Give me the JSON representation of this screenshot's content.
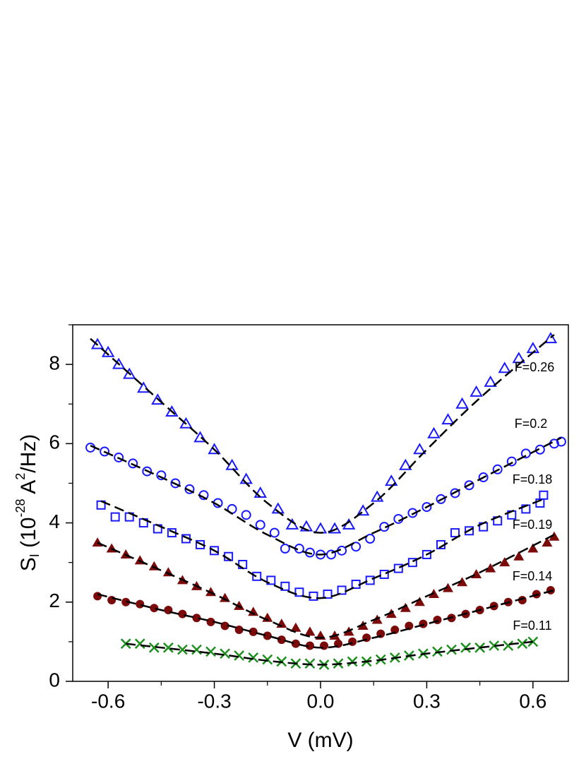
{
  "chart_data": {
    "type": "scatter",
    "xlabel": "V (mV)",
    "ylabel": [
      "S",
      "I",
      " (10",
      "-28",
      " A",
      "2",
      "/Hz)"
    ],
    "xlim": [
      -0.7,
      0.7
    ],
    "ylim": [
      0,
      9
    ],
    "xticks": [
      -0.6,
      -0.3,
      {
        "value": 0,
        "label": "0.0"
      },
      0.3,
      0.6
    ],
    "yticks": [
      0,
      2,
      4,
      6,
      8
    ],
    "fit_color": "#000000",
    "series": [
      {
        "name": "F=0.26",
        "color": "#1a1aff",
        "marker": "triangle-open",
        "x": [
          -0.63,
          -0.6,
          -0.57,
          -0.54,
          -0.5,
          -0.46,
          -0.42,
          -0.38,
          -0.34,
          -0.3,
          -0.25,
          -0.21,
          -0.17,
          -0.12,
          -0.08,
          -0.04,
          0.0,
          0.04,
          0.08,
          0.12,
          0.16,
          0.2,
          0.24,
          0.28,
          0.32,
          0.36,
          0.4,
          0.44,
          0.48,
          0.52,
          0.56,
          0.6,
          0.65
        ],
        "values": [
          8.5,
          8.3,
          8.0,
          7.75,
          7.4,
          7.1,
          6.8,
          6.5,
          6.15,
          5.85,
          5.45,
          5.1,
          4.75,
          4.35,
          3.95,
          3.9,
          3.85,
          3.85,
          3.95,
          4.3,
          4.65,
          5.05,
          5.45,
          5.85,
          6.25,
          6.6,
          7.0,
          7.3,
          7.55,
          7.9,
          8.15,
          8.4,
          8.65
        ],
        "fit": {
          "x": [
            -0.65,
            -0.45,
            -0.3,
            -0.15,
            0,
            0.15,
            0.3,
            0.45,
            0.66
          ],
          "values": [
            8.65,
            7.05,
            5.85,
            4.5,
            3.75,
            4.5,
            5.85,
            7.15,
            8.75
          ]
        }
      },
      {
        "name": "F=0.2",
        "color": "#1a1aff",
        "marker": "circle-open",
        "x": [
          -0.65,
          -0.61,
          -0.57,
          -0.53,
          -0.49,
          -0.45,
          -0.41,
          -0.37,
          -0.33,
          -0.29,
          -0.25,
          -0.21,
          -0.17,
          -0.13,
          -0.1,
          -0.06,
          -0.03,
          0.0,
          0.03,
          0.06,
          0.1,
          0.14,
          0.18,
          0.22,
          0.26,
          0.3,
          0.34,
          0.38,
          0.42,
          0.46,
          0.5,
          0.54,
          0.58,
          0.62,
          0.66,
          0.68
        ],
        "values": [
          5.9,
          5.8,
          5.65,
          5.5,
          5.3,
          5.2,
          5.0,
          4.85,
          4.7,
          4.5,
          4.35,
          4.2,
          3.95,
          3.75,
          3.35,
          3.35,
          3.25,
          3.2,
          3.2,
          3.3,
          3.4,
          3.6,
          3.9,
          4.1,
          4.25,
          4.4,
          4.6,
          4.75,
          4.95,
          5.15,
          5.35,
          5.55,
          5.75,
          5.85,
          6.0,
          6.05
        ],
        "fit": {
          "x": [
            -0.65,
            -0.45,
            -0.3,
            -0.15,
            0,
            0.15,
            0.3,
            0.45,
            0.68
          ],
          "values": [
            5.95,
            5.15,
            4.5,
            3.7,
            3.2,
            3.75,
            4.4,
            5.1,
            6.15
          ]
        }
      },
      {
        "name": "F=0.18",
        "color": "#1a1aff",
        "marker": "square-open",
        "x": [
          -0.62,
          -0.58,
          -0.54,
          -0.5,
          -0.46,
          -0.42,
          -0.38,
          -0.34,
          -0.3,
          -0.26,
          -0.22,
          -0.18,
          -0.14,
          -0.1,
          -0.06,
          -0.02,
          0.02,
          0.06,
          0.1,
          0.14,
          0.18,
          0.22,
          0.26,
          0.3,
          0.34,
          0.38,
          0.42,
          0.46,
          0.5,
          0.54,
          0.58,
          0.62,
          0.63
        ],
        "values": [
          4.45,
          4.15,
          4.15,
          4.0,
          3.85,
          3.75,
          3.6,
          3.45,
          3.3,
          3.15,
          2.95,
          2.65,
          2.55,
          2.4,
          2.25,
          2.15,
          2.2,
          2.3,
          2.45,
          2.55,
          2.7,
          2.85,
          3.0,
          3.2,
          3.45,
          3.75,
          3.8,
          3.9,
          4.05,
          4.2,
          4.35,
          4.5,
          4.7
        ],
        "fit": {
          "x": [
            -0.62,
            -0.45,
            -0.3,
            -0.15,
            0,
            0.15,
            0.3,
            0.45,
            0.63
          ],
          "values": [
            4.55,
            3.9,
            3.3,
            2.5,
            2.1,
            2.6,
            3.2,
            3.95,
            4.6
          ]
        }
      },
      {
        "name": "F=0.19",
        "color": "#7b0a0a",
        "marker": "triangle",
        "x": [
          -0.63,
          -0.59,
          -0.55,
          -0.51,
          -0.47,
          -0.43,
          -0.39,
          -0.35,
          -0.31,
          -0.27,
          -0.23,
          -0.19,
          -0.15,
          -0.11,
          -0.07,
          -0.03,
          0.0,
          0.04,
          0.08,
          0.12,
          0.16,
          0.2,
          0.24,
          0.28,
          0.32,
          0.36,
          0.4,
          0.44,
          0.48,
          0.52,
          0.56,
          0.6,
          0.64,
          0.66
        ],
        "values": [
          3.5,
          3.35,
          3.2,
          3.05,
          2.9,
          2.75,
          2.55,
          2.4,
          2.25,
          2.1,
          1.9,
          1.75,
          1.6,
          1.45,
          1.35,
          1.25,
          1.15,
          1.15,
          1.25,
          1.4,
          1.55,
          1.7,
          1.85,
          2.0,
          2.2,
          2.35,
          2.5,
          2.7,
          2.85,
          3.0,
          3.15,
          3.35,
          3.5,
          3.65
        ],
        "fit": {
          "x": [
            -0.63,
            -0.45,
            -0.3,
            -0.15,
            0,
            0.15,
            0.3,
            0.45,
            0.66
          ],
          "values": [
            3.5,
            2.8,
            2.2,
            1.55,
            1.1,
            1.55,
            2.15,
            2.75,
            3.7
          ]
        }
      },
      {
        "name": "F=0.14",
        "color": "#7b0a0a",
        "marker": "circle",
        "x": [
          -0.63,
          -0.59,
          -0.55,
          -0.51,
          -0.47,
          -0.43,
          -0.39,
          -0.35,
          -0.31,
          -0.27,
          -0.23,
          -0.19,
          -0.15,
          -0.11,
          -0.07,
          -0.03,
          0.01,
          0.05,
          0.09,
          0.13,
          0.17,
          0.21,
          0.25,
          0.29,
          0.33,
          0.37,
          0.41,
          0.45,
          0.49,
          0.53,
          0.57,
          0.61,
          0.65
        ],
        "values": [
          2.15,
          2.05,
          2.0,
          1.95,
          1.85,
          1.8,
          1.7,
          1.6,
          1.5,
          1.4,
          1.3,
          1.25,
          1.15,
          1.05,
          0.95,
          0.9,
          0.9,
          0.95,
          1.0,
          1.1,
          1.2,
          1.3,
          1.4,
          1.45,
          1.55,
          1.6,
          1.7,
          1.8,
          1.9,
          2.0,
          2.05,
          2.2,
          2.3
        ],
        "fit": {
          "x": [
            -0.63,
            -0.45,
            -0.3,
            -0.15,
            0,
            0.15,
            0.3,
            0.45,
            0.66
          ],
          "values": [
            2.2,
            1.8,
            1.5,
            1.15,
            0.85,
            1.1,
            1.45,
            1.8,
            2.3
          ]
        }
      },
      {
        "name": "F=0.11",
        "color": "#1f8f1f",
        "marker": "x",
        "x": [
          -0.55,
          -0.51,
          -0.47,
          -0.43,
          -0.39,
          -0.35,
          -0.31,
          -0.27,
          -0.23,
          -0.19,
          -0.15,
          -0.11,
          -0.07,
          -0.03,
          0.01,
          0.05,
          0.09,
          0.13,
          0.17,
          0.21,
          0.25,
          0.29,
          0.33,
          0.37,
          0.41,
          0.45,
          0.49,
          0.53,
          0.57,
          0.6
        ],
        "values": [
          0.95,
          0.95,
          0.85,
          0.85,
          0.8,
          0.8,
          0.75,
          0.7,
          0.65,
          0.6,
          0.55,
          0.5,
          0.45,
          0.45,
          0.42,
          0.45,
          0.5,
          0.5,
          0.55,
          0.6,
          0.65,
          0.7,
          0.75,
          0.8,
          0.85,
          0.85,
          0.9,
          0.9,
          0.95,
          1.0
        ],
        "fit": {
          "x": [
            -0.55,
            -0.3,
            -0.15,
            0,
            0.15,
            0.3,
            0.6
          ],
          "values": [
            0.95,
            0.7,
            0.52,
            0.42,
            0.52,
            0.7,
            1.0
          ]
        }
      }
    ]
  }
}
